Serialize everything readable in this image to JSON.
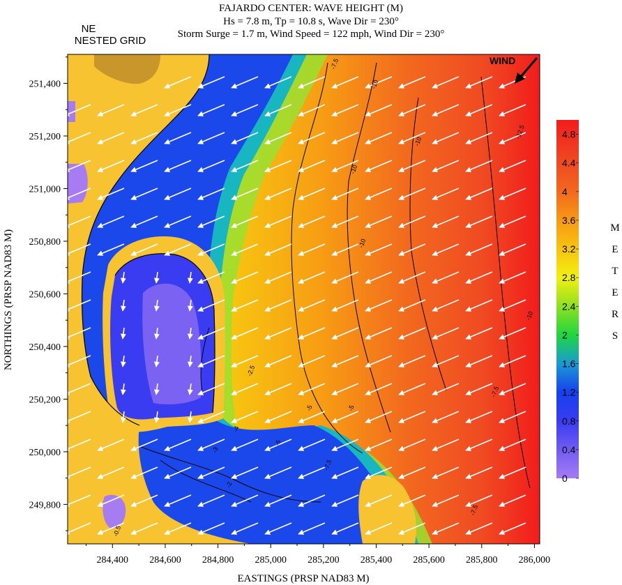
{
  "chart_data": {
    "type": "heatmap",
    "title": "FAJARDO CENTER: WAVE HEIGHT (M)",
    "subtitle_line1": "Hs = 7.8 m, Tp = 10.8 s, Wave Dir = 230°",
    "subtitle_line2": "Storm Surge = 1.7 m, Wind Speed = 122 mph, Wind Dir = 230°",
    "grid_label_line1": "NE",
    "grid_label_line2": "NESTED GRID",
    "wind_label": "WIND",
    "xlabel": "EASTINGS (PRSP NAD83 M)",
    "ylabel": "NORTHINGS (PRSP NAD83 M)",
    "xlim": [
      284230,
      286020
    ],
    "ylim": [
      249650,
      251510
    ],
    "x_ticks": [
      284400,
      284600,
      284800,
      285000,
      285200,
      285400,
      285600,
      285800,
      286000
    ],
    "x_tick_labels": [
      "284,400",
      "284,600",
      "284,800",
      "285,000",
      "285,200",
      "285,400",
      "285,600",
      "285,800",
      "286,000"
    ],
    "y_ticks": [
      249800,
      250000,
      250200,
      250400,
      250600,
      250800,
      251000,
      251200,
      251400
    ],
    "y_tick_labels": [
      "249,800",
      "250,000",
      "250,200",
      "250,400",
      "250,600",
      "250,800",
      "251,000",
      "251,200",
      "251,400"
    ],
    "colorbar": {
      "title_letters": [
        "M",
        "E",
        "T",
        "E",
        "R",
        "S"
      ],
      "min": 0,
      "max": 5,
      "ticks": [
        0,
        0.4,
        0.8,
        1.2,
        1.6,
        2,
        2.4,
        2.8,
        3.2,
        3.6,
        4,
        4.4,
        4.8
      ],
      "tick_labels": [
        "0",
        "0.4",
        "0.8",
        "1.2",
        "1.6",
        "2",
        "2.4",
        "2.8",
        "3.2",
        "3.6",
        "4",
        "4.4",
        "4.8"
      ],
      "stops": [
        {
          "value": 0,
          "color": "#a77cf3"
        },
        {
          "value": 0.8,
          "color": "#3a3cf2"
        },
        {
          "value": 1.2,
          "color": "#1640ee"
        },
        {
          "value": 1.6,
          "color": "#1a9ad4"
        },
        {
          "value": 2.0,
          "color": "#20d640"
        },
        {
          "value": 2.4,
          "color": "#8fe020"
        },
        {
          "value": 2.8,
          "color": "#f2f012"
        },
        {
          "value": 3.2,
          "color": "#f7c410"
        },
        {
          "value": 3.6,
          "color": "#f79a14"
        },
        {
          "value": 4.0,
          "color": "#f2691e"
        },
        {
          "value": 4.4,
          "color": "#f04a22"
        },
        {
          "value": 5.0,
          "color": "#f21c1c"
        }
      ]
    },
    "land_color": "#f8c330",
    "highland_color": "#c8962a",
    "contour_labels": [
      "-7.5",
      "-10",
      "-10",
      "-10",
      "-10",
      "-7.5",
      "-5",
      "-5",
      "-2.5",
      "-4",
      "-3",
      "-2",
      "-5",
      "-7.5",
      "-12.5",
      "-10",
      "-0.5",
      "-7.5"
    ],
    "wave_direction_deg": 230
  }
}
